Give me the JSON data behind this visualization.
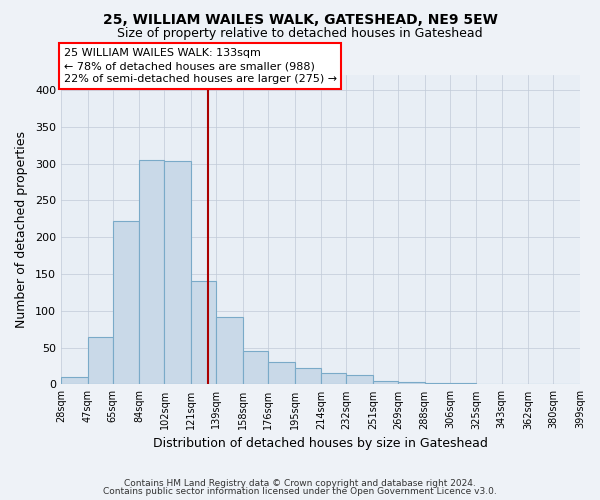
{
  "title": "25, WILLIAM WAILES WALK, GATESHEAD, NE9 5EW",
  "subtitle": "Size of property relative to detached houses in Gateshead",
  "xlabel": "Distribution of detached houses by size in Gateshead",
  "ylabel": "Number of detached properties",
  "bar_color": "#c9d9e8",
  "bar_edge_color": "#7aaac8",
  "property_line_color": "#aa0000",
  "property_size": 133,
  "bins": [
    28,
    47,
    65,
    84,
    102,
    121,
    139,
    158,
    176,
    195,
    214,
    232,
    251,
    269,
    288,
    306,
    325,
    343,
    362,
    380,
    399
  ],
  "bin_labels": [
    "28sqm",
    "47sqm",
    "65sqm",
    "84sqm",
    "102sqm",
    "121sqm",
    "139sqm",
    "158sqm",
    "176sqm",
    "195sqm",
    "214sqm",
    "232sqm",
    "251sqm",
    "269sqm",
    "288sqm",
    "306sqm",
    "325sqm",
    "343sqm",
    "362sqm",
    "380sqm",
    "399sqm"
  ],
  "counts": [
    10,
    64,
    222,
    305,
    303,
    140,
    91,
    46,
    31,
    23,
    16,
    13,
    5,
    3,
    2,
    2,
    1,
    1,
    1,
    1
  ],
  "ylim": [
    0,
    420
  ],
  "yticks": [
    0,
    50,
    100,
    150,
    200,
    250,
    300,
    350,
    400
  ],
  "annotation_title": "25 WILLIAM WAILES WALK: 133sqm",
  "annotation_line1": "← 78% of detached houses are smaller (988)",
  "annotation_line2": "22% of semi-detached houses are larger (275) →",
  "footer_line1": "Contains HM Land Registry data © Crown copyright and database right 2024.",
  "footer_line2": "Contains public sector information licensed under the Open Government Licence v3.0.",
  "background_color": "#eef2f7",
  "plot_background_color": "#e8eef5",
  "grid_color": "#c0cad8"
}
